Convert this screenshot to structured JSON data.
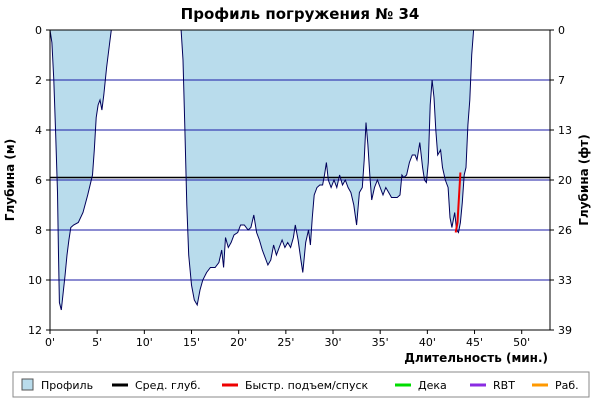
{
  "chart_data": {
    "type": "area",
    "title": "Профиль погружения № 34",
    "xlabel": "Длительность (мин.)",
    "ylabel_left": "Глубина (м)",
    "ylabel_right": "Глубина (фт)",
    "xlim": [
      0,
      53
    ],
    "ylim_m": [
      0,
      12
    ],
    "x_ticks": [
      "0'",
      "5'",
      "10'",
      "15'",
      "20'",
      "25'",
      "30'",
      "35'",
      "40'",
      "45'",
      "50'"
    ],
    "y_ticks_m": [
      "0",
      "2",
      "4",
      "6",
      "8",
      "10",
      "12"
    ],
    "y_ticks_ft": [
      "0",
      "7",
      "13",
      "20",
      "26",
      "33",
      "39"
    ],
    "avg_depth_m": 5.9,
    "profile": [
      [
        0,
        0
      ],
      [
        0.2,
        0.5
      ],
      [
        0.4,
        2.0
      ],
      [
        0.6,
        4.2
      ],
      [
        0.8,
        6.5
      ],
      [
        0.9,
        9.0
      ],
      [
        1.0,
        10.9
      ],
      [
        1.2,
        11.2
      ],
      [
        1.4,
        10.5
      ],
      [
        1.6,
        9.8
      ],
      [
        1.8,
        9.0
      ],
      [
        2.0,
        8.4
      ],
      [
        2.2,
        7.9
      ],
      [
        2.5,
        7.8
      ],
      [
        3.0,
        7.7
      ],
      [
        3.5,
        7.3
      ],
      [
        4.0,
        6.6
      ],
      [
        4.5,
        5.8
      ],
      [
        4.7,
        4.8
      ],
      [
        4.9,
        3.5
      ],
      [
        5.1,
        3.0
      ],
      [
        5.3,
        2.8
      ],
      [
        5.5,
        3.2
      ],
      [
        5.7,
        2.6
      ],
      [
        6.0,
        1.5
      ],
      [
        6.3,
        0.6
      ],
      [
        6.5,
        0.0
      ],
      [
        13.9,
        0.0
      ],
      [
        14.1,
        1.2
      ],
      [
        14.3,
        4.0
      ],
      [
        14.5,
        7.0
      ],
      [
        14.7,
        9.0
      ],
      [
        15.0,
        10.2
      ],
      [
        15.3,
        10.8
      ],
      [
        15.6,
        11.0
      ],
      [
        15.9,
        10.4
      ],
      [
        16.2,
        10.0
      ],
      [
        16.6,
        9.7
      ],
      [
        17.0,
        9.5
      ],
      [
        17.5,
        9.5
      ],
      [
        17.9,
        9.3
      ],
      [
        18.2,
        8.8
      ],
      [
        18.4,
        9.5
      ],
      [
        18.6,
        8.3
      ],
      [
        18.9,
        8.7
      ],
      [
        19.2,
        8.5
      ],
      [
        19.5,
        8.2
      ],
      [
        19.9,
        8.1
      ],
      [
        20.2,
        7.8
      ],
      [
        20.6,
        7.8
      ],
      [
        21.0,
        8.0
      ],
      [
        21.3,
        7.9
      ],
      [
        21.6,
        7.4
      ],
      [
        21.9,
        8.1
      ],
      [
        22.2,
        8.4
      ],
      [
        22.5,
        8.8
      ],
      [
        22.8,
        9.1
      ],
      [
        23.1,
        9.4
      ],
      [
        23.4,
        9.2
      ],
      [
        23.7,
        8.6
      ],
      [
        24.0,
        9.0
      ],
      [
        24.3,
        8.7
      ],
      [
        24.6,
        8.4
      ],
      [
        24.9,
        8.7
      ],
      [
        25.2,
        8.5
      ],
      [
        25.5,
        8.7
      ],
      [
        25.8,
        8.3
      ],
      [
        26.0,
        7.8
      ],
      [
        26.3,
        8.4
      ],
      [
        26.6,
        9.2
      ],
      [
        26.8,
        9.7
      ],
      [
        27.1,
        8.5
      ],
      [
        27.4,
        8.0
      ],
      [
        27.6,
        8.6
      ],
      [
        27.8,
        7.5
      ],
      [
        28.0,
        6.6
      ],
      [
        28.3,
        6.3
      ],
      [
        28.6,
        6.2
      ],
      [
        28.9,
        6.2
      ],
      [
        29.1,
        5.8
      ],
      [
        29.3,
        5.3
      ],
      [
        29.5,
        6.0
      ],
      [
        29.8,
        6.3
      ],
      [
        30.1,
        6.0
      ],
      [
        30.4,
        6.3
      ],
      [
        30.7,
        5.8
      ],
      [
        31.0,
        6.2
      ],
      [
        31.3,
        6.0
      ],
      [
        31.6,
        6.3
      ],
      [
        31.9,
        6.5
      ],
      [
        32.2,
        7.0
      ],
      [
        32.5,
        7.8
      ],
      [
        32.8,
        6.5
      ],
      [
        33.1,
        6.3
      ],
      [
        33.3,
        5.2
      ],
      [
        33.5,
        3.7
      ],
      [
        33.7,
        4.6
      ],
      [
        33.9,
        5.8
      ],
      [
        34.1,
        6.8
      ],
      [
        34.4,
        6.3
      ],
      [
        34.7,
        6.0
      ],
      [
        35.0,
        6.3
      ],
      [
        35.3,
        6.6
      ],
      [
        35.6,
        6.3
      ],
      [
        35.9,
        6.5
      ],
      [
        36.2,
        6.7
      ],
      [
        36.5,
        6.7
      ],
      [
        36.8,
        6.7
      ],
      [
        37.1,
        6.6
      ],
      [
        37.3,
        5.8
      ],
      [
        37.5,
        5.9
      ],
      [
        37.8,
        5.8
      ],
      [
        38.1,
        5.3
      ],
      [
        38.4,
        5.0
      ],
      [
        38.7,
        5.0
      ],
      [
        38.9,
        5.2
      ],
      [
        39.2,
        4.5
      ],
      [
        39.5,
        5.5
      ],
      [
        39.7,
        6.0
      ],
      [
        39.9,
        6.1
      ],
      [
        40.1,
        5.3
      ],
      [
        40.3,
        3.0
      ],
      [
        40.5,
        2.0
      ],
      [
        40.7,
        2.7
      ],
      [
        40.9,
        4.0
      ],
      [
        41.1,
        5.0
      ],
      [
        41.4,
        4.8
      ],
      [
        41.6,
        5.5
      ],
      [
        41.9,
        6.0
      ],
      [
        42.2,
        6.3
      ],
      [
        42.4,
        7.5
      ],
      [
        42.6,
        7.9
      ],
      [
        42.9,
        7.3
      ],
      [
        43.1,
        8.0
      ],
      [
        43.3,
        8.1
      ],
      [
        43.5,
        7.7
      ],
      [
        43.7,
        6.9
      ],
      [
        43.9,
        5.8
      ],
      [
        44.1,
        5.5
      ],
      [
        44.3,
        3.8
      ],
      [
        44.5,
        2.8
      ],
      [
        44.7,
        1.0
      ],
      [
        44.9,
        0.0
      ]
    ],
    "ascent_segment": [
      [
        43.0,
        8.1
      ],
      [
        43.2,
        7.7
      ],
      [
        43.5,
        5.7
      ]
    ]
  },
  "legend": {
    "items": [
      {
        "label": "Профиль",
        "color": "#b9dcec"
      },
      {
        "label": "Сред. глуб.",
        "color": "#000000"
      },
      {
        "label": "Быстр. подъем/спуск",
        "color": "#ee0000"
      },
      {
        "label": "Дека",
        "color": "#00dd00"
      },
      {
        "label": "RBT",
        "color": "#8a2be2"
      },
      {
        "label": "Раб.",
        "color": "#ff9900"
      }
    ]
  }
}
